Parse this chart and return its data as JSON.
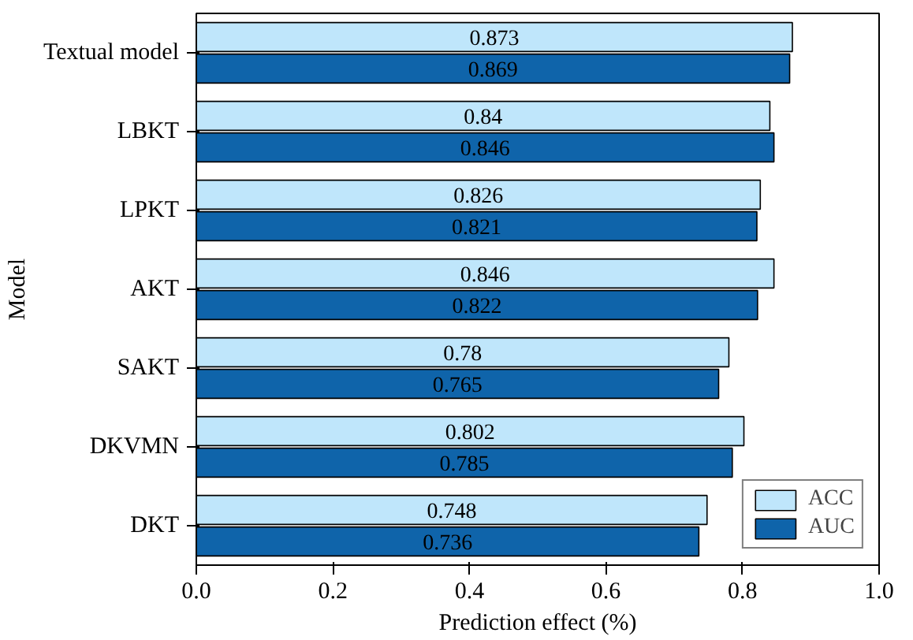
{
  "chart_data": {
    "type": "bar",
    "orientation": "horizontal",
    "xlabel": "Prediction effect (%)",
    "ylabel": "Model",
    "categories": [
      "Textual model",
      "LBKT",
      "LPKT",
      "AKT",
      "SAKT",
      "DKVMN",
      "DKT"
    ],
    "series": [
      {
        "name": "ACC",
        "color": "#bfe6fb",
        "values": [
          0.873,
          0.84,
          0.826,
          0.846,
          0.78,
          0.802,
          0.748
        ]
      },
      {
        "name": "AUC",
        "color": "#0f64aa",
        "values": [
          0.869,
          0.846,
          0.821,
          0.822,
          0.765,
          0.785,
          0.736
        ]
      }
    ],
    "xlim": [
      0,
      1.0
    ],
    "xticks": [
      {
        "value": 0,
        "label": "0.0"
      },
      0.2,
      0.4,
      0.6,
      0.8,
      {
        "value": 1,
        "label": "1.0"
      }
    ],
    "data_labels": true,
    "grid": false,
    "legend": "bottom right"
  }
}
